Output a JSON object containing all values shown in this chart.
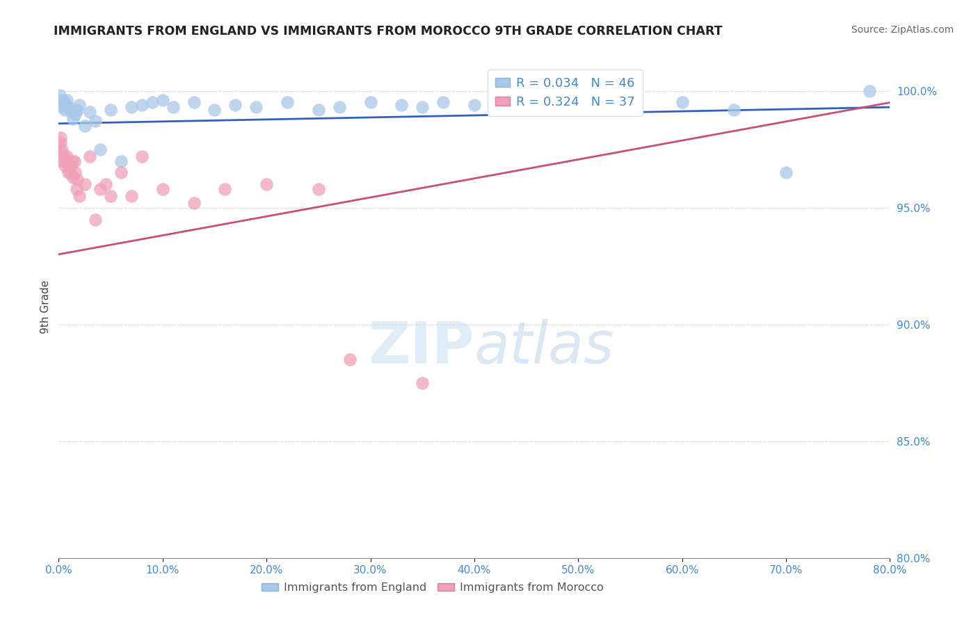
{
  "title": "IMMIGRANTS FROM ENGLAND VS IMMIGRANTS FROM MOROCCO 9TH GRADE CORRELATION CHART",
  "source": "Source: ZipAtlas.com",
  "ylabel": "9th Grade",
  "xlim": [
    0.0,
    80.0
  ],
  "ylim": [
    80.0,
    101.5
  ],
  "yticks": [
    80.0,
    85.0,
    90.0,
    95.0,
    100.0
  ],
  "xticks": [
    0.0,
    10.0,
    20.0,
    30.0,
    40.0,
    50.0,
    60.0,
    70.0,
    80.0
  ],
  "legend_england": "R = 0.034   N = 46",
  "legend_morocco": "R = 0.324   N = 37",
  "england_color": "#a8c8e8",
  "morocco_color": "#f0a0b8",
  "trend_england_color": "#3060c0",
  "trend_morocco_color": "#c85070",
  "tick_color": "#4488cc",
  "england_x": [
    0.1,
    0.2,
    0.3,
    0.4,
    0.5,
    0.6,
    0.7,
    0.8,
    1.0,
    1.2,
    1.4,
    1.6,
    1.8,
    2.0,
    2.5,
    3.0,
    3.5,
    4.0,
    5.0,
    6.0,
    7.0,
    8.0,
    9.0,
    10.0,
    11.0,
    13.0,
    15.0,
    17.0,
    19.0,
    22.0,
    25.0,
    27.0,
    30.0,
    33.0,
    35.0,
    37.0,
    40.0,
    43.0,
    45.0,
    48.0,
    50.0,
    55.0,
    60.0,
    65.0,
    70.0,
    78.0
  ],
  "england_y": [
    99.8,
    99.5,
    99.6,
    99.3,
    99.5,
    99.2,
    99.4,
    99.6,
    99.3,
    99.1,
    98.8,
    99.0,
    99.2,
    99.4,
    98.5,
    99.1,
    98.7,
    97.5,
    99.2,
    97.0,
    99.3,
    99.4,
    99.5,
    99.6,
    99.3,
    99.5,
    99.2,
    99.4,
    99.3,
    99.5,
    99.2,
    99.3,
    99.5,
    99.4,
    99.3,
    99.5,
    99.4,
    99.3,
    99.5,
    99.2,
    99.4,
    99.3,
    99.5,
    99.2,
    96.5,
    100.0
  ],
  "morocco_x": [
    0.05,
    0.1,
    0.15,
    0.2,
    0.3,
    0.4,
    0.5,
    0.6,
    0.7,
    0.8,
    0.9,
    1.0,
    1.1,
    1.2,
    1.3,
    1.4,
    1.5,
    1.6,
    1.7,
    1.8,
    2.0,
    2.5,
    3.0,
    3.5,
    4.0,
    4.5,
    5.0,
    6.0,
    7.0,
    8.0,
    10.0,
    13.0,
    16.0,
    20.0,
    25.0,
    28.0,
    35.0
  ],
  "morocco_y": [
    97.5,
    97.2,
    97.8,
    98.0,
    97.5,
    97.0,
    97.2,
    96.8,
    97.0,
    97.2,
    96.5,
    96.8,
    96.5,
    96.8,
    97.0,
    96.3,
    97.0,
    96.5,
    95.8,
    96.2,
    95.5,
    96.0,
    97.2,
    94.5,
    95.8,
    96.0,
    95.5,
    96.5,
    95.5,
    97.2,
    95.8,
    95.2,
    95.8,
    96.0,
    95.8,
    88.5,
    87.5
  ]
}
